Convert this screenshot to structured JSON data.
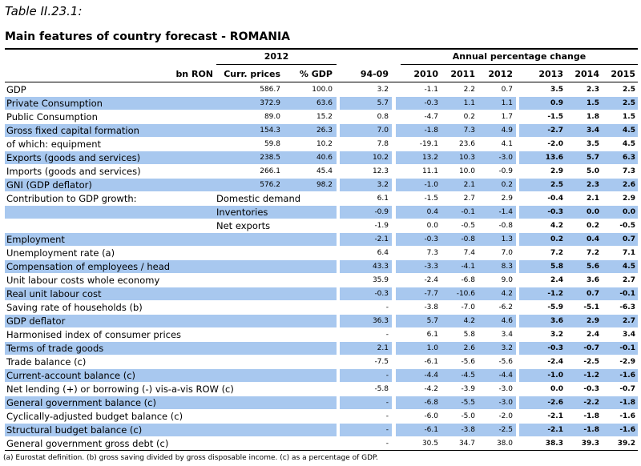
{
  "title": "Table II.23.1:",
  "subtitle": "Main features of country forecast - ROMANIA",
  "group_headers": [
    "2012",
    "Annual percentage change"
  ],
  "columns": [
    "bn RON",
    "Curr. prices",
    "% GDP",
    "94-09",
    "2010",
    "2011",
    "2012",
    "2013",
    "2014",
    "2015"
  ],
  "rows": [
    {
      "label": "GDP",
      "values": [
        "586.7",
        "100.0",
        "3.2",
        "-1.1",
        "2.2",
        "0.7",
        "3.5",
        "2.3",
        "2.5"
      ]
    },
    {
      "label": "Private Consumption",
      "values": [
        "372.9",
        "63.6",
        "5.7",
        "-0.3",
        "1.1",
        "1.1",
        "0.9",
        "1.5",
        "2.5"
      ]
    },
    {
      "label": "Public Consumption",
      "values": [
        "89.0",
        "15.2",
        "0.8",
        "-4.7",
        "0.2",
        "1.7",
        "-1.5",
        "1.8",
        "1.5"
      ]
    },
    {
      "label": "Gross fixed capital formation",
      "values": [
        "154.3",
        "26.3",
        "7.0",
        "-1.8",
        "7.3",
        "4.9",
        "-2.7",
        "3.4",
        "4.5"
      ]
    },
    {
      "label": "of which: equipment",
      "values": [
        "59.8",
        "10.2",
        "7.8",
        "-19.1",
        "23.6",
        "4.1",
        "-2.0",
        "3.5",
        "4.5"
      ]
    },
    {
      "label": "Exports (goods and services)",
      "values": [
        "238.5",
        "40.6",
        "10.2",
        "13.2",
        "10.3",
        "-3.0",
        "13.6",
        "5.7",
        "6.3"
      ]
    },
    {
      "label": "Imports (goods and services)",
      "values": [
        "266.1",
        "45.4",
        "12.3",
        "11.1",
        "10.0",
        "-0.9",
        "2.9",
        "5.0",
        "7.3"
      ]
    },
    {
      "label": "GNI (GDP deflator)",
      "values": [
        "576.2",
        "98.2",
        "3.2",
        "-1.0",
        "2.1",
        "0.2",
        "2.5",
        "2.3",
        "2.6"
      ]
    },
    {
      "label": "Contribution to GDP growth:",
      "sublabel": "Domestic demand",
      "values": [
        null,
        null,
        "6.1",
        "-1.5",
        "2.7",
        "2.9",
        "-0.4",
        "2.1",
        "2.9"
      ]
    },
    {
      "sublabel": "Inventories",
      "values": [
        null,
        null,
        "-0.9",
        "0.4",
        "-0.1",
        "-1.4",
        "-0.3",
        "0.0",
        "0.0"
      ]
    },
    {
      "sublabel": "Net exports",
      "values": [
        null,
        null,
        "-1.9",
        "0.0",
        "-0.5",
        "-0.8",
        "4.2",
        "0.2",
        "-0.5"
      ]
    },
    {
      "label": "Employment",
      "values": [
        null,
        null,
        "-2.1",
        "-0.3",
        "-0.8",
        "1.3",
        "0.2",
        "0.4",
        "0.7"
      ]
    },
    {
      "label": "Unemployment rate (a)",
      "values": [
        null,
        null,
        "6.4",
        "7.3",
        "7.4",
        "7.0",
        "7.2",
        "7.2",
        "7.1"
      ]
    },
    {
      "label": "Compensation of employees / head",
      "values": [
        null,
        null,
        "43.3",
        "-3.3",
        "-4.1",
        "8.3",
        "5.8",
        "5.6",
        "4.5"
      ]
    },
    {
      "label": "Unit labour costs whole economy",
      "values": [
        null,
        null,
        "35.9",
        "-2.4",
        "-6.8",
        "9.0",
        "2.4",
        "3.6",
        "2.7"
      ]
    },
    {
      "label": "Real unit labour cost",
      "values": [
        null,
        null,
        "-0.3",
        "-7.7",
        "-10.6",
        "4.2",
        "-1.2",
        "0.7",
        "-0.1"
      ]
    },
    {
      "label": "Saving rate of households (b)",
      "values": [
        null,
        null,
        "-",
        "-3.8",
        "-7.0",
        "-6.2",
        "-5.9",
        "-5.1",
        "-6.3"
      ]
    },
    {
      "label": "GDP deflator",
      "values": [
        null,
        null,
        "36.3",
        "5.7",
        "4.2",
        "4.6",
        "3.6",
        "2.9",
        "2.7"
      ]
    },
    {
      "label": "Harmonised index of consumer prices",
      "values": [
        null,
        null,
        "-",
        "6.1",
        "5.8",
        "3.4",
        "3.2",
        "2.4",
        "3.4"
      ]
    },
    {
      "label": "Terms of trade goods",
      "values": [
        null,
        null,
        "2.1",
        "1.0",
        "2.6",
        "3.2",
        "-0.3",
        "-0.7",
        "-0.1"
      ]
    },
    {
      "label": "Trade balance (c)",
      "values": [
        null,
        null,
        "-7.5",
        "-6.1",
        "-5.6",
        "-5.6",
        "-2.4",
        "-2.5",
        "-2.9"
      ]
    },
    {
      "label": "Current-account balance (c)",
      "values": [
        null,
        null,
        "-",
        "-4.4",
        "-4.5",
        "-4.4",
        "-1.0",
        "-1.2",
        "-1.6"
      ]
    },
    {
      "label": "Net lending (+) or borrowing (-) vis-a-vis ROW (c)",
      "values": [
        null,
        null,
        "-5.8",
        "-4.2",
        "-3.9",
        "-3.0",
        "0.0",
        "-0.3",
        "-0.7"
      ]
    },
    {
      "label": "General government balance (c)",
      "values": [
        null,
        null,
        "-",
        "-6.8",
        "-5.5",
        "-3.0",
        "-2.6",
        "-2.2",
        "-1.8"
      ]
    },
    {
      "label": "Cyclically-adjusted budget balance (c)",
      "values": [
        null,
        null,
        "-",
        "-6.0",
        "-5.0",
        "-2.0",
        "-2.1",
        "-1.8",
        "-1.6"
      ]
    },
    {
      "label": "Structural budget balance (c)",
      "values": [
        null,
        null,
        "-",
        "-6.1",
        "-3.8",
        "-2.5",
        "-2.1",
        "-1.8",
        "-1.6"
      ]
    },
    {
      "label": "General government gross debt (c)",
      "values": [
        null,
        null,
        "-",
        "30.5",
        "34.7",
        "38.0",
        "38.3",
        "39.3",
        "39.2"
      ]
    }
  ],
  "footnote": "(a) Eurostat definition.  (b) gross saving divided by gross disposable income.  (c) as a percentage of GDP."
}
